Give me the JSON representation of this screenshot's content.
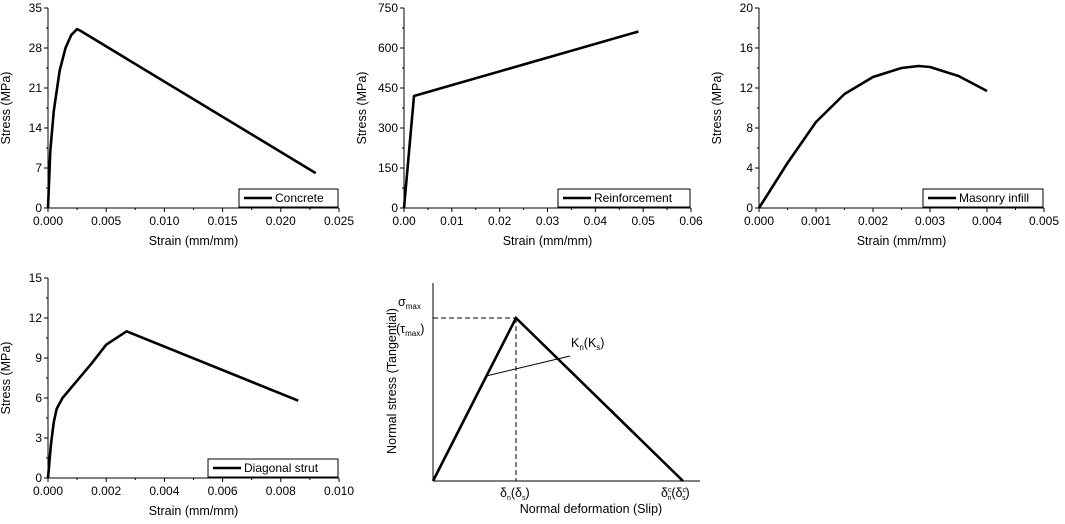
{
  "chart_data": [
    {
      "type": "line",
      "xlabel": "Strain (mm/mm)",
      "ylabel": "Stress (MPa)",
      "xlim": [
        0,
        0.025
      ],
      "ylim": [
        0,
        35
      ],
      "xticks": [
        "0.000",
        "0.005",
        "0.010",
        "0.015",
        "0.020",
        "0.025"
      ],
      "yticks": [
        "0",
        "7",
        "14",
        "21",
        "28",
        "35"
      ],
      "legend_position": "bottom-right",
      "series": [
        {
          "name": "Concrete",
          "x": [
            0,
            0.0002,
            0.0005,
            0.001,
            0.0015,
            0.002,
            0.0025,
            0.0028,
            0.023
          ],
          "y": [
            0,
            10,
            17,
            24,
            28,
            30.3,
            31.3,
            31,
            6.1
          ]
        }
      ]
    },
    {
      "type": "line",
      "xlabel": "Strain (mm/mm)",
      "ylabel": "Stress (MPa)",
      "xlim": [
        0,
        0.06
      ],
      "ylim": [
        0,
        750
      ],
      "xticks": [
        "0.00",
        "0.01",
        "0.02",
        "0.03",
        "0.04",
        "0.05",
        "0.06"
      ],
      "yticks": [
        "0",
        "150",
        "300",
        "450",
        "600",
        "750"
      ],
      "legend_position": "bottom-right",
      "series": [
        {
          "name": "Reinforcement",
          "x": [
            0,
            0.0021,
            0.049
          ],
          "y": [
            0,
            420,
            662
          ]
        }
      ]
    },
    {
      "type": "line",
      "xlabel": "Strain (mm/mm)",
      "ylabel": "Stress (MPa)",
      "xlim": [
        0,
        0.005
      ],
      "ylim": [
        0,
        20
      ],
      "xticks": [
        "0.000",
        "0.001",
        "0.002",
        "0.003",
        "0.004",
        "0.005"
      ],
      "yticks": [
        "0",
        "4",
        "8",
        "12",
        "16",
        "20"
      ],
      "legend_position": "bottom-right",
      "series": [
        {
          "name": "Masonry infill",
          "x": [
            0,
            0.0005,
            0.001,
            0.0015,
            0.002,
            0.0025,
            0.0028,
            0.003,
            0.0035,
            0.004
          ],
          "y": [
            0,
            4.5,
            8.6,
            11.4,
            13.1,
            14.0,
            14.2,
            14.1,
            13.2,
            11.7
          ]
        }
      ]
    },
    {
      "type": "line",
      "xlabel": "Strain (mm/mm)",
      "ylabel": "Stress (MPa)",
      "xlim": [
        0,
        0.01
      ],
      "ylim": [
        0,
        15
      ],
      "xticks": [
        "0.000",
        "0.002",
        "0.004",
        "0.006",
        "0.008",
        "0.010"
      ],
      "yticks": [
        "0",
        "3",
        "6",
        "9",
        "12",
        "15"
      ],
      "legend_position": "bottom-right",
      "series": [
        {
          "name": "Diagonal strut",
          "x": [
            0,
            0.0001,
            0.0002,
            0.0003,
            0.0005,
            0.001,
            0.0015,
            0.002,
            0.0027,
            0.0086
          ],
          "y": [
            0,
            2.5,
            4.2,
            5.2,
            6.0,
            7.3,
            8.6,
            10.0,
            11.0,
            5.8
          ]
        }
      ]
    }
  ],
  "concept": {
    "ylabel": "Normal stress (Tangential)",
    "xlabel": "Normal deformation (Slip)",
    "peak_label_sigma": "σ",
    "peak_label_sigma_sub": "max",
    "peak_label_tau": "(τ",
    "peak_label_tau_sub": "max",
    "peak_label_tau_close": ")",
    "stiffness_K": "K",
    "stiffness_K_sub": "n",
    "stiffness_paren": "(K",
    "stiffness_paren_sub": "s",
    "stiffness_close": ")",
    "delta_n": "δ",
    "delta_n_sub": "n",
    "delta_s": "(δ",
    "delta_s_sub": "s",
    "delta_s_close": ")",
    "delta_c": "δ",
    "delta_c_sup": "c",
    "delta_c_sub": "n",
    "delta_cs": "(δ",
    "delta_cs_sup": "c",
    "delta_cs_sub": "s",
    "delta_cs_close": ")"
  }
}
